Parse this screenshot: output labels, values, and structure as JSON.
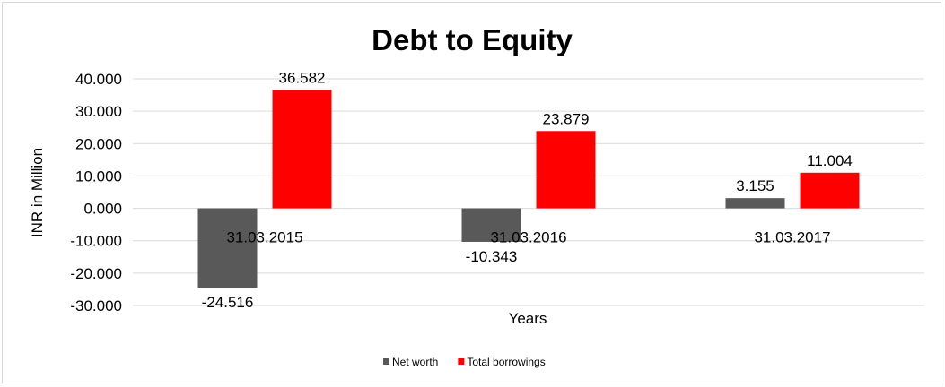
{
  "chart_data": {
    "type": "bar",
    "title": "Debt to Equity",
    "xlabel": "Years",
    "ylabel": "INR in Million",
    "categories": [
      "31.03.2015",
      "31.03.2016",
      "31.03.2017"
    ],
    "series": [
      {
        "name": "Net worth",
        "values": [
          -24.516,
          -10.343,
          3.155
        ],
        "labels": [
          "-24.516",
          "-10.343",
          "3.155"
        ],
        "color": "#595959"
      },
      {
        "name": "Total borrowings",
        "values": [
          36.582,
          23.879,
          11.004
        ],
        "labels": [
          "36.582",
          "23.879",
          "11.004"
        ],
        "color": "#ff0000"
      }
    ],
    "ylim": [
      -30,
      40
    ],
    "yticks": [
      40,
      30,
      20,
      10,
      0,
      -10,
      -20,
      -30
    ],
    "ytick_labels": [
      "40.000",
      "30.000",
      "20.000",
      "10.000",
      "0.000",
      "-10.000",
      "-20.000",
      "-30.000"
    ],
    "grid": true,
    "legend": "bottom"
  }
}
